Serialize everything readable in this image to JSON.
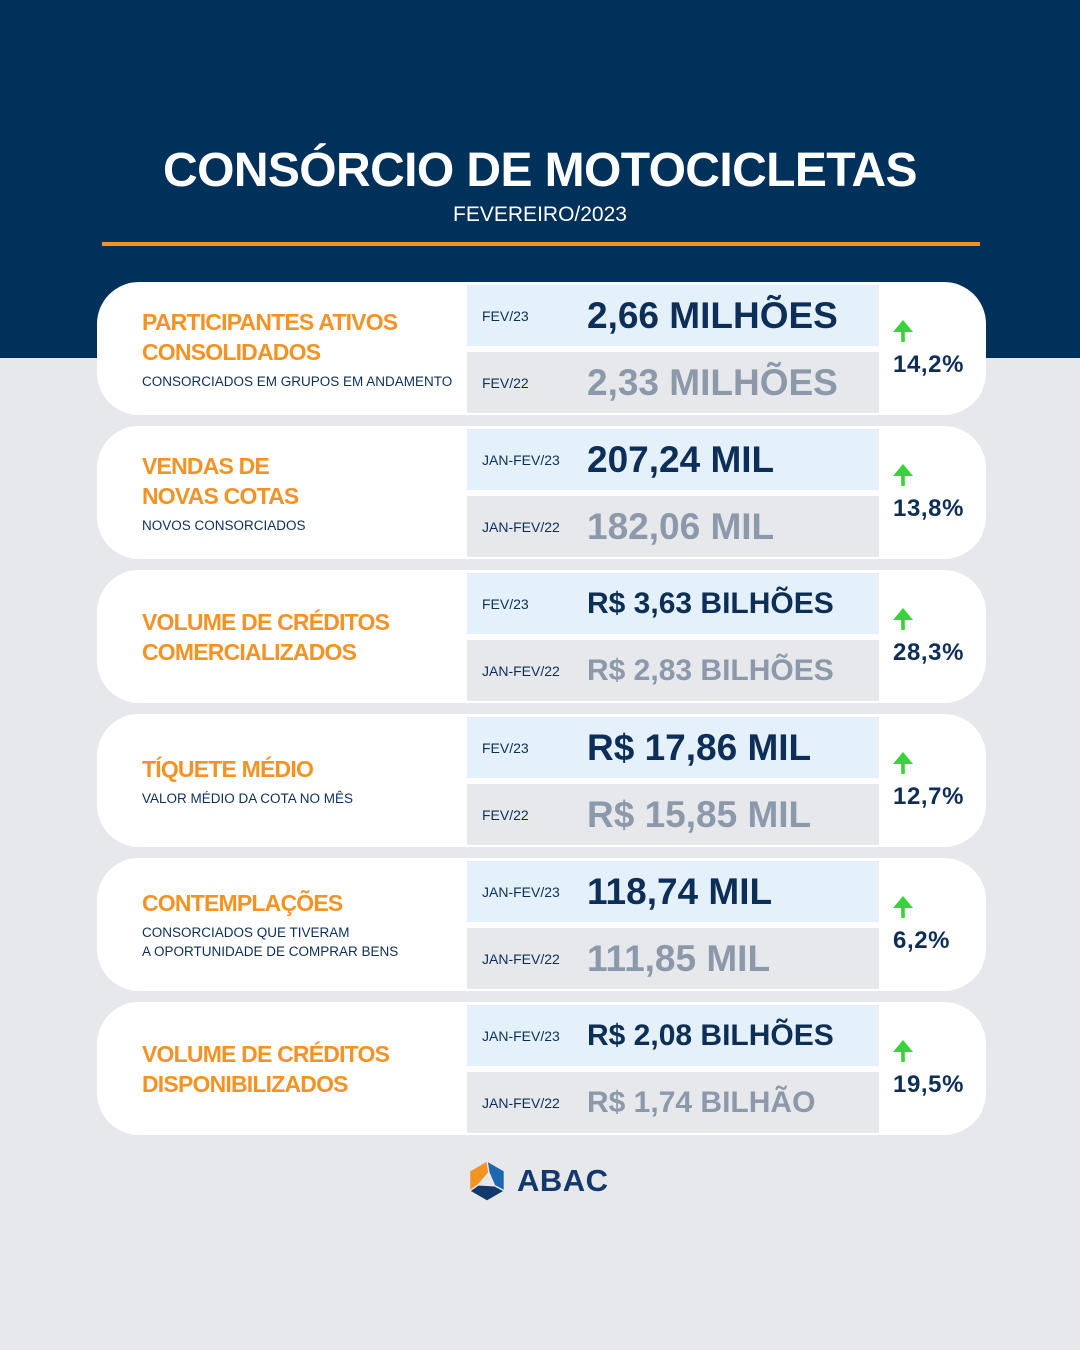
{
  "header": {
    "title": "CONSÓRCIO DE MOTOCICLETAS",
    "subtitle": "FEVEREIRO/2023"
  },
  "colors": {
    "navy_band": "#00315a",
    "page_bg": "#e6e8ec",
    "accent_orange": "#f39325",
    "card_bg": "#ffffff",
    "current_box": "#e4f0fa",
    "previous_box": "#e6e8ec",
    "text_navy": "#0d2f57",
    "text_gray": "#8c99aa",
    "trend_green": "#3ad23a",
    "logo_blue": "#1f66b0",
    "logo_dark_blue": "#13386b",
    "header_text": "#ffffff"
  },
  "cards": [
    {
      "title_lines": [
        "PARTICIPANTES ATIVOS",
        "CONSOLIDADOS"
      ],
      "subtitle_lines": [
        "CONSORCIADOS EM GRUPOS EM ANDAMENTO"
      ],
      "current": {
        "period": "FEV/23",
        "value": "2,66 MILHÕES"
      },
      "previous": {
        "period": "FEV/22",
        "value": "2,33 MILHÕES"
      },
      "change": {
        "trend_icon": "arrow-up-icon",
        "percent": "14,2%"
      }
    },
    {
      "title_lines": [
        "VENDAS DE",
        "NOVAS COTAS"
      ],
      "subtitle_lines": [
        "NOVOS CONSORCIADOS"
      ],
      "current": {
        "period": "JAN-FEV/23",
        "value": "207,24 MIL"
      },
      "previous": {
        "period": "JAN-FEV/22",
        "value": "182,06 MIL"
      },
      "change": {
        "trend_icon": "arrow-up-icon",
        "percent": "13,8%"
      }
    },
    {
      "title_lines": [
        "VOLUME DE CRÉDITOS",
        "COMERCIALIZADOS"
      ],
      "subtitle_lines": [],
      "current": {
        "period": "FEV/23",
        "value": "R$ 3,63 BILHÕES"
      },
      "previous": {
        "period": "JAN-FEV/22",
        "value": "R$ 2,83 BILHÕES"
      },
      "change": {
        "trend_icon": "arrow-up-icon",
        "percent": "28,3%"
      }
    },
    {
      "title_lines": [
        "TÍQUETE MÉDIO"
      ],
      "subtitle_lines": [
        "VALOR MÉDIO DA COTA NO MÊS"
      ],
      "current": {
        "period": "FEV/23",
        "value": "R$ 17,86 MIL"
      },
      "previous": {
        "period": "FEV/22",
        "value": "R$ 15,85 MIL"
      },
      "change": {
        "trend_icon": "arrow-up-icon",
        "percent": "12,7%"
      }
    },
    {
      "title_lines": [
        "CONTEMPLAÇÕES"
      ],
      "subtitle_lines": [
        "CONSORCIADOS QUE TIVERAM",
        "A OPORTUNIDADE DE COMPRAR BENS"
      ],
      "current": {
        "period": "JAN-FEV/23",
        "value": "118,74 MIL"
      },
      "previous": {
        "period": "JAN-FEV/22",
        "value": "111,85 MIL"
      },
      "change": {
        "trend_icon": "arrow-up-icon",
        "percent": "6,2%"
      }
    },
    {
      "title_lines": [
        "VOLUME DE CRÉDITOS",
        "DISPONIBILIZADOS"
      ],
      "subtitle_lines": [],
      "current": {
        "period": "JAN-FEV/23",
        "value": "R$ 2,08 BILHÕES"
      },
      "previous": {
        "period": "JAN-FEV/22",
        "value": "R$ 1,74 BILHÃO"
      },
      "change": {
        "trend_icon": "arrow-up-icon",
        "percent": "19,5%"
      }
    }
  ],
  "footer": {
    "logo_icon": "abac-logo-icon",
    "logo_text": "ABAC"
  }
}
